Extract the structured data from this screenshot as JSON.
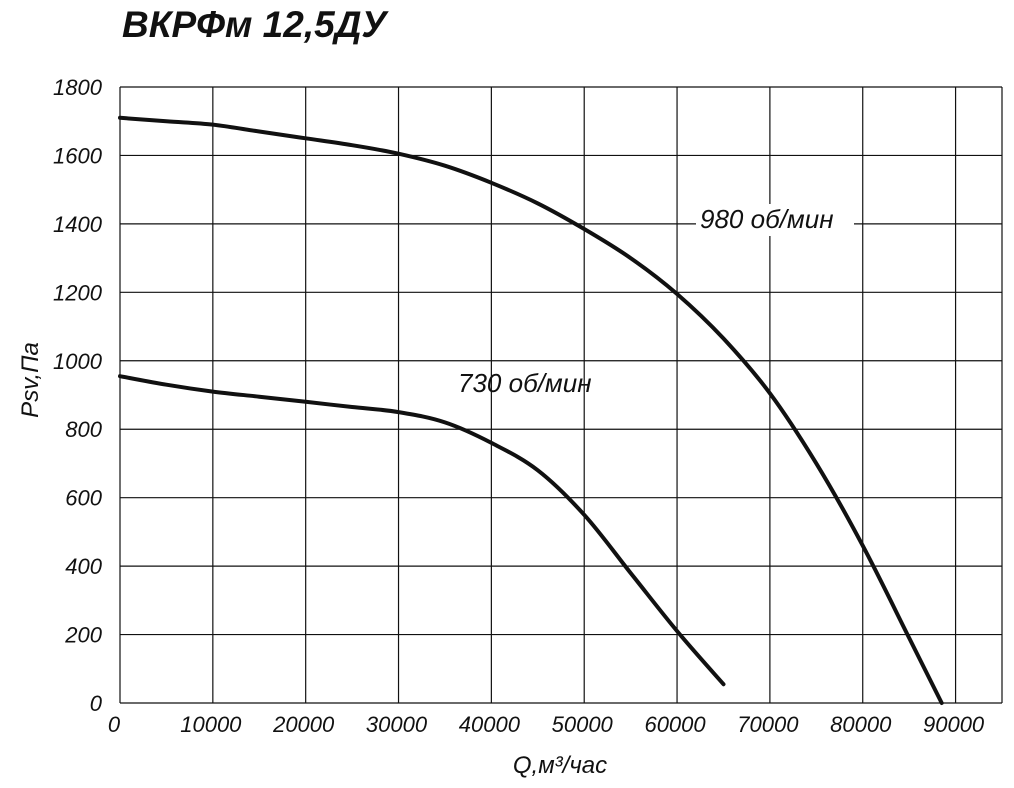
{
  "chart_data": {
    "type": "line",
    "title": "ВКРФм 12,5ДУ",
    "xlabel": "Q,м³/час",
    "ylabel": "Psv,Па",
    "xlim": [
      0,
      95000
    ],
    "ylim": [
      0,
      1800
    ],
    "x_ticks": [
      0,
      10000,
      20000,
      30000,
      40000,
      50000,
      60000,
      70000,
      80000,
      90000
    ],
    "y_ticks": [
      0,
      200,
      400,
      600,
      800,
      1000,
      1200,
      1400,
      1600,
      1800
    ],
    "grid": true,
    "series": [
      {
        "name": "980 об/мин",
        "color": "#111111",
        "x": [
          0,
          5000,
          10000,
          15000,
          20000,
          25000,
          30000,
          35000,
          40000,
          45000,
          50000,
          55000,
          60000,
          65000,
          70000,
          75000,
          80000,
          85000,
          88500
        ],
        "y": [
          1710,
          1700,
          1690,
          1670,
          1650,
          1630,
          1605,
          1570,
          1520,
          1460,
          1385,
          1300,
          1195,
          1065,
          905,
          700,
          460,
          190,
          0
        ]
      },
      {
        "name": "730 об/мин",
        "color": "#111111",
        "x": [
          0,
          5000,
          10000,
          15000,
          20000,
          25000,
          30000,
          35000,
          40000,
          45000,
          50000,
          55000,
          60000,
          65000
        ],
        "y": [
          955,
          930,
          910,
          895,
          880,
          865,
          850,
          820,
          760,
          680,
          550,
          380,
          210,
          55
        ]
      }
    ]
  }
}
